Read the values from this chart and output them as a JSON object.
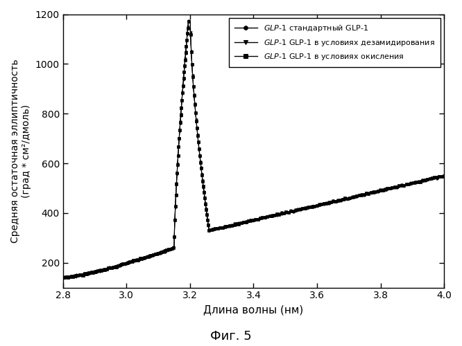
{
  "title": "Фиг. 5",
  "xlabel": "Длина волны (нм)",
  "ylabel": "Средняя остаточная эллиптичность\n(град * см²/дмоль)",
  "xlim": [
    2.8,
    4.0
  ],
  "ylim": [
    100,
    1200
  ],
  "yticks": [
    200,
    400,
    600,
    800,
    1000,
    1200
  ],
  "xticks": [
    2.8,
    3.0,
    3.2,
    3.4,
    3.6,
    3.8,
    4.0
  ],
  "legend_entries": [
    {
      "label": "$\\mathit{GLP}$-$\\mathit{1}$ стандартный GLP-1",
      "marker": "o"
    },
    {
      "label": "$\\mathit{GLP}$-$\\mathit{1}$ GLP-1 в условиях дезамидирования",
      "marker": "v"
    },
    {
      "label": "$\\mathit{GLP}$-$\\mathit{1}$ GLP-1 в условиях окисления",
      "marker": "s"
    }
  ],
  "line_color": "#000000",
  "bg_color": "#ffffff",
  "marker_step": 3,
  "marker_size": 2.5
}
